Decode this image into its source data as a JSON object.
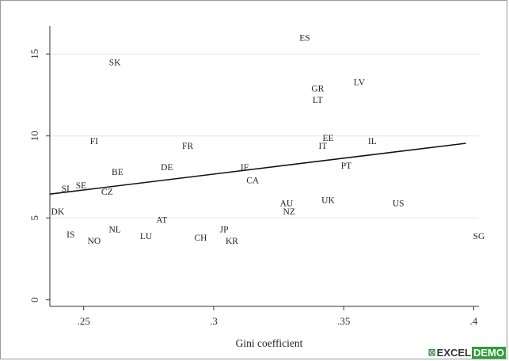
{
  "chart_data": {
    "type": "scatter",
    "xlabel": "Gini coefficient",
    "ylabel": "",
    "xlim": [
      0.237,
      0.402
    ],
    "ylim": [
      -0.4,
      16.7
    ],
    "x_ticks": [
      0.25,
      0.3,
      0.35,
      0.4
    ],
    "x_tick_labels": [
      ".25",
      ".3",
      ".35",
      ".4"
    ],
    "y_ticks": [
      0,
      5,
      10,
      15
    ],
    "y_tick_labels": [
      "0",
      "5",
      "10",
      "15"
    ],
    "grid": "horizontal",
    "legend": "none",
    "points": [
      {
        "label": "ES",
        "x": 0.335,
        "y": 16.0
      },
      {
        "label": "SK",
        "x": 0.262,
        "y": 14.5
      },
      {
        "label": "LV",
        "x": 0.356,
        "y": 13.3
      },
      {
        "label": "GR",
        "x": 0.34,
        "y": 12.9
      },
      {
        "label": "LT",
        "x": 0.34,
        "y": 12.2
      },
      {
        "label": "EE",
        "x": 0.344,
        "y": 9.9
      },
      {
        "label": "FI",
        "x": 0.254,
        "y": 9.7
      },
      {
        "label": "IL",
        "x": 0.361,
        "y": 9.7
      },
      {
        "label": "FR",
        "x": 0.29,
        "y": 9.4
      },
      {
        "label": "IT",
        "x": 0.342,
        "y": 9.4
      },
      {
        "label": "PT",
        "x": 0.351,
        "y": 8.2
      },
      {
        "label": "DE",
        "x": 0.282,
        "y": 8.1
      },
      {
        "label": "IE",
        "x": 0.312,
        "y": 8.1
      },
      {
        "label": "BE",
        "x": 0.263,
        "y": 7.8
      },
      {
        "label": "CA",
        "x": 0.315,
        "y": 7.3
      },
      {
        "label": "SE",
        "x": 0.249,
        "y": 7.0
      },
      {
        "label": "SI",
        "x": 0.243,
        "y": 6.8
      },
      {
        "label": "CZ",
        "x": 0.259,
        "y": 6.6
      },
      {
        "label": "UK",
        "x": 0.344,
        "y": 6.1
      },
      {
        "label": "AU",
        "x": 0.328,
        "y": 5.9
      },
      {
        "label": "US",
        "x": 0.371,
        "y": 5.9
      },
      {
        "label": "NZ",
        "x": 0.329,
        "y": 5.4
      },
      {
        "label": "DK",
        "x": 0.24,
        "y": 5.4
      },
      {
        "label": "AT",
        "x": 0.28,
        "y": 4.9
      },
      {
        "label": "NL",
        "x": 0.262,
        "y": 4.3
      },
      {
        "label": "JP",
        "x": 0.304,
        "y": 4.3
      },
      {
        "label": "IS",
        "x": 0.245,
        "y": 4.0
      },
      {
        "label": "LU",
        "x": 0.274,
        "y": 3.9
      },
      {
        "label": "CH",
        "x": 0.295,
        "y": 3.8
      },
      {
        "label": "SG",
        "x": 0.402,
        "y": 3.9
      },
      {
        "label": "KR",
        "x": 0.307,
        "y": 3.6
      },
      {
        "label": "NO",
        "x": 0.254,
        "y": 3.6
      }
    ],
    "fit_line": {
      "x": [
        0.237,
        0.397
      ],
      "y": [
        6.45,
        9.55
      ]
    }
  },
  "watermark": {
    "mark": "⊠",
    "part_a": "EXCEL",
    "part_b": "DEMO"
  }
}
